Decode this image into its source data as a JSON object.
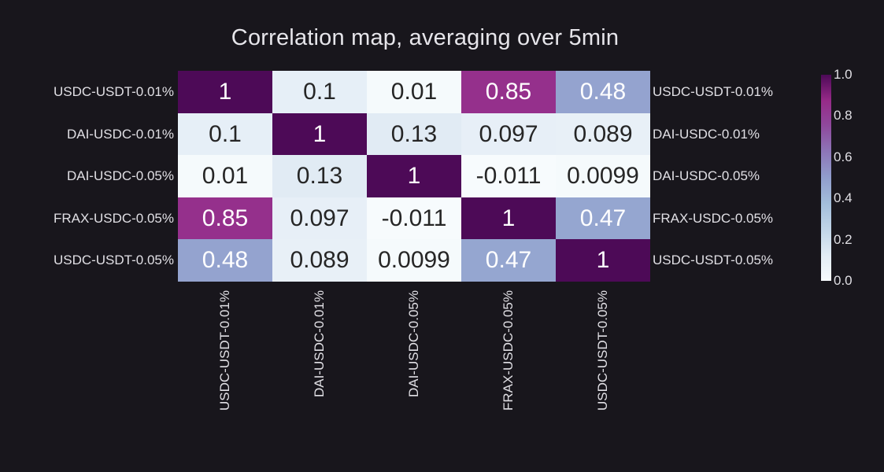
{
  "title": "Correlation map, averaging over 5min",
  "colors": {
    "background": "#18161c",
    "text": "#e0dfe4",
    "cell_text_dark": "#262626",
    "cell_text_light": "#ffffff"
  },
  "chart_data": {
    "type": "heatmap",
    "title": "Correlation map, averaging over 5min",
    "labels": [
      "USDC-USDT-0.01%",
      "DAI-USDC-0.01%",
      "DAI-USDC-0.05%",
      "FRAX-USDC-0.05%",
      "USDC-USDT-0.05%"
    ],
    "label_axes": [
      "left",
      "right",
      "bottom"
    ],
    "values": [
      [
        1,
        0.1,
        0.01,
        0.85,
        0.48
      ],
      [
        0.1,
        1,
        0.13,
        0.097,
        0.089
      ],
      [
        0.01,
        0.13,
        1,
        -0.011,
        0.0099
      ],
      [
        0.85,
        0.097,
        -0.011,
        1,
        0.47
      ],
      [
        0.48,
        0.089,
        0.0099,
        0.47,
        1
      ]
    ],
    "value_labels": [
      [
        "1",
        "0.1",
        "0.01",
        "0.85",
        "0.48"
      ],
      [
        "0.1",
        "1",
        "0.13",
        "0.097",
        "0.089"
      ],
      [
        "0.01",
        "0.13",
        "1",
        "-0.011",
        "0.0099"
      ],
      [
        "0.85",
        "0.097",
        "-0.011",
        "1",
        "0.47"
      ],
      [
        "0.48",
        "0.089",
        "0.0099",
        "0.47",
        "1"
      ]
    ],
    "colorbar": {
      "min": 0.0,
      "max": 1.0,
      "tick_values": [
        0.0,
        0.2,
        0.4,
        0.6,
        0.8,
        1.0
      ],
      "tick_labels": [
        "0.0",
        "0.2",
        "0.4",
        "0.6",
        "0.8",
        "1.0"
      ],
      "position": "right"
    },
    "colormap_stops": [
      {
        "t": 0.0,
        "color": "#f7fbfd"
      },
      {
        "t": 0.125,
        "color": "#e2ecf5"
      },
      {
        "t": 0.25,
        "color": "#c1d5e8"
      },
      {
        "t": 0.375,
        "color": "#a3bedb"
      },
      {
        "t": 0.5,
        "color": "#919ecd"
      },
      {
        "t": 0.625,
        "color": "#8d76b8"
      },
      {
        "t": 0.75,
        "color": "#8f4a9d"
      },
      {
        "t": 0.875,
        "color": "#962a88"
      },
      {
        "t": 1.0,
        "color": "#4d0a57"
      }
    ],
    "text_color_threshold": 0.4,
    "grid": false,
    "legend": false
  }
}
